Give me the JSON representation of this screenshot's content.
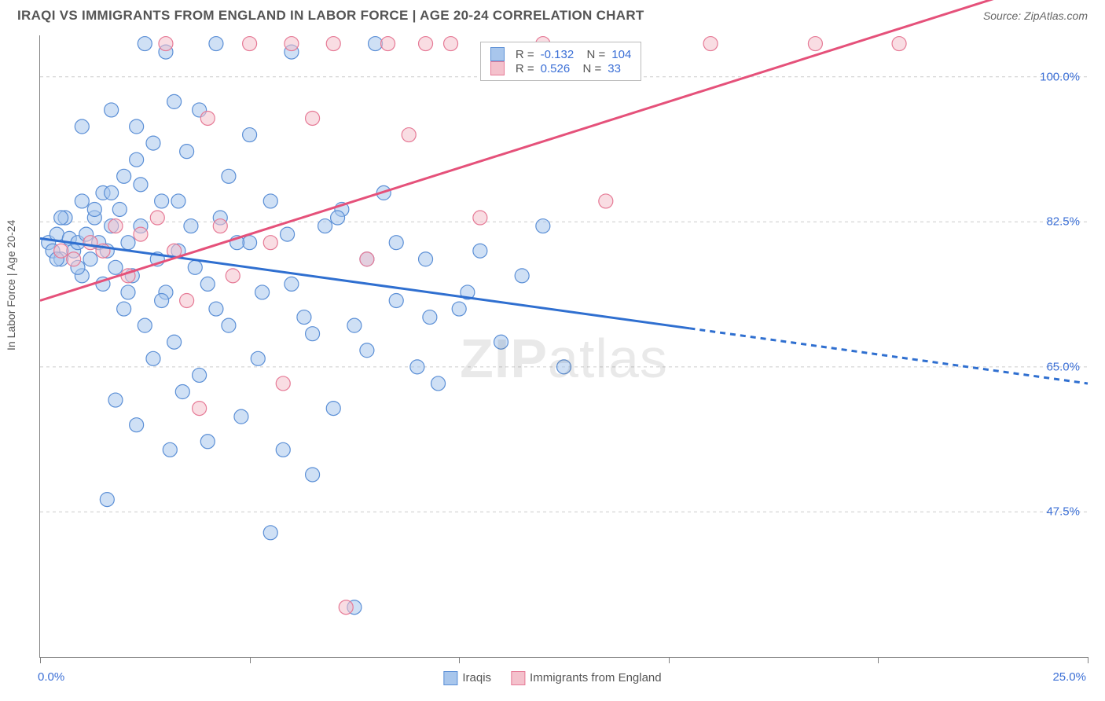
{
  "header": {
    "title": "IRAQI VS IMMIGRANTS FROM ENGLAND IN LABOR FORCE | AGE 20-24 CORRELATION CHART",
    "source": "Source: ZipAtlas.com"
  },
  "y_axis": {
    "label": "In Labor Force | Age 20-24"
  },
  "watermark": {
    "bold": "ZIP",
    "light": "atlas"
  },
  "chart": {
    "type": "scatter",
    "xlim": [
      0,
      25
    ],
    "ylim": [
      30,
      105
    ],
    "x_ticks": [
      0,
      5,
      10,
      15,
      20,
      25
    ],
    "y_gridlines": [
      47.5,
      65.0,
      82.5,
      100.0
    ],
    "y_tick_labels": [
      "47.5%",
      "65.0%",
      "82.5%",
      "100.0%"
    ],
    "x_left_label": "0.0%",
    "x_right_label": "25.0%",
    "background_color": "#ffffff",
    "grid_color": "#cccccc",
    "axis_color": "#808080",
    "marker_radius": 9,
    "marker_opacity": 0.55,
    "series": [
      {
        "name": "Iraqis",
        "fill": "#a8c6ec",
        "stroke": "#5b8fd6",
        "trend": {
          "color": "#2f6fd0",
          "width": 3,
          "y_at_x0": 80.5,
          "y_at_x25": 63.0,
          "solid_until_x": 15.5
        },
        "R": "-0.132",
        "N": "104",
        "points": [
          [
            0.2,
            80
          ],
          [
            0.3,
            79
          ],
          [
            0.4,
            81
          ],
          [
            0.5,
            78
          ],
          [
            0.6,
            83
          ],
          [
            0.7,
            80.5
          ],
          [
            0.8,
            79
          ],
          [
            0.9,
            80
          ],
          [
            1.0,
            76
          ],
          [
            1.0,
            85
          ],
          [
            1.1,
            81
          ],
          [
            1.2,
            78
          ],
          [
            1.3,
            83
          ],
          [
            1.4,
            80
          ],
          [
            1.5,
            75
          ],
          [
            1.5,
            86
          ],
          [
            1.6,
            79
          ],
          [
            1.7,
            82
          ],
          [
            1.8,
            77
          ],
          [
            1.9,
            84
          ],
          [
            2.0,
            72
          ],
          [
            2.0,
            88
          ],
          [
            2.1,
            80
          ],
          [
            2.2,
            76
          ],
          [
            2.3,
            90
          ],
          [
            2.4,
            82
          ],
          [
            2.5,
            70
          ],
          [
            2.5,
            104
          ],
          [
            2.7,
            92
          ],
          [
            2.8,
            78
          ],
          [
            2.9,
            85
          ],
          [
            3.0,
            74
          ],
          [
            3.0,
            103
          ],
          [
            3.2,
            68
          ],
          [
            3.3,
            79
          ],
          [
            3.5,
            91
          ],
          [
            3.6,
            82
          ],
          [
            3.8,
            64
          ],
          [
            3.8,
            96
          ],
          [
            4.0,
            75
          ],
          [
            4.0,
            56
          ],
          [
            4.2,
            104
          ],
          [
            4.3,
            83
          ],
          [
            4.5,
            70
          ],
          [
            4.5,
            88
          ],
          [
            4.8,
            59
          ],
          [
            5.0,
            80
          ],
          [
            5.0,
            93
          ],
          [
            5.2,
            66
          ],
          [
            5.5,
            45
          ],
          [
            5.5,
            85
          ],
          [
            5.8,
            55
          ],
          [
            6.0,
            75
          ],
          [
            6.0,
            103
          ],
          [
            6.3,
            71
          ],
          [
            6.5,
            52
          ],
          [
            6.8,
            82
          ],
          [
            7.0,
            60
          ],
          [
            7.2,
            84
          ],
          [
            7.5,
            70
          ],
          [
            7.5,
            36
          ],
          [
            7.8,
            78
          ],
          [
            8.0,
            104
          ],
          [
            8.2,
            86
          ],
          [
            8.5,
            73
          ],
          [
            9.0,
            65
          ],
          [
            9.2,
            78
          ],
          [
            9.5,
            63
          ],
          [
            10.0,
            72
          ],
          [
            10.5,
            79
          ],
          [
            11.0,
            68
          ],
          [
            11.5,
            76
          ],
          [
            12.0,
            82
          ],
          [
            12.5,
            65
          ],
          [
            1.6,
            49
          ],
          [
            1.8,
            61
          ],
          [
            2.3,
            58
          ],
          [
            2.7,
            66
          ],
          [
            3.1,
            55
          ],
          [
            3.4,
            62
          ],
          [
            0.4,
            78
          ],
          [
            0.5,
            83
          ],
          [
            0.9,
            77
          ],
          [
            1.3,
            84
          ],
          [
            1.7,
            86
          ],
          [
            2.1,
            74
          ],
          [
            2.4,
            87
          ],
          [
            2.9,
            73
          ],
          [
            3.3,
            85
          ],
          [
            3.7,
            77
          ],
          [
            4.2,
            72
          ],
          [
            4.7,
            80
          ],
          [
            5.3,
            74
          ],
          [
            5.9,
            81
          ],
          [
            6.5,
            69
          ],
          [
            7.1,
            83
          ],
          [
            7.8,
            67
          ],
          [
            8.5,
            80
          ],
          [
            9.3,
            71
          ],
          [
            10.2,
            74
          ],
          [
            1.0,
            94
          ],
          [
            1.7,
            96
          ],
          [
            2.3,
            94
          ],
          [
            3.2,
            97
          ]
        ]
      },
      {
        "name": "Immigrants from England",
        "fill": "#f4c1cc",
        "stroke": "#e67a96",
        "trend": {
          "color": "#e5517a",
          "width": 3,
          "y_at_x0": 73.0,
          "y_at_x25": 113.0,
          "solid_until_x": 25
        },
        "R": "0.526",
        "N": "33",
        "points": [
          [
            0.5,
            79
          ],
          [
            0.8,
            78
          ],
          [
            1.2,
            80
          ],
          [
            1.5,
            79
          ],
          [
            1.8,
            82
          ],
          [
            2.1,
            76
          ],
          [
            2.4,
            81
          ],
          [
            2.8,
            83
          ],
          [
            3.0,
            104
          ],
          [
            3.2,
            79
          ],
          [
            3.5,
            73
          ],
          [
            3.8,
            60
          ],
          [
            4.0,
            95
          ],
          [
            4.3,
            82
          ],
          [
            4.6,
            76
          ],
          [
            5.0,
            104
          ],
          [
            5.5,
            80
          ],
          [
            5.8,
            63
          ],
          [
            6.0,
            104
          ],
          [
            6.5,
            95
          ],
          [
            7.0,
            104
          ],
          [
            7.3,
            36
          ],
          [
            7.8,
            78
          ],
          [
            8.3,
            104
          ],
          [
            8.8,
            93
          ],
          [
            9.2,
            104
          ],
          [
            9.8,
            104
          ],
          [
            10.5,
            83
          ],
          [
            12.0,
            104
          ],
          [
            13.5,
            85
          ],
          [
            16.0,
            104
          ],
          [
            18.5,
            104
          ],
          [
            20.5,
            104
          ]
        ]
      }
    ]
  },
  "legend": {
    "items": [
      {
        "label": "Iraqis",
        "fill": "#a8c6ec",
        "stroke": "#5b8fd6"
      },
      {
        "label": "Immigrants from England",
        "fill": "#f4c1cc",
        "stroke": "#e67a96"
      }
    ]
  }
}
